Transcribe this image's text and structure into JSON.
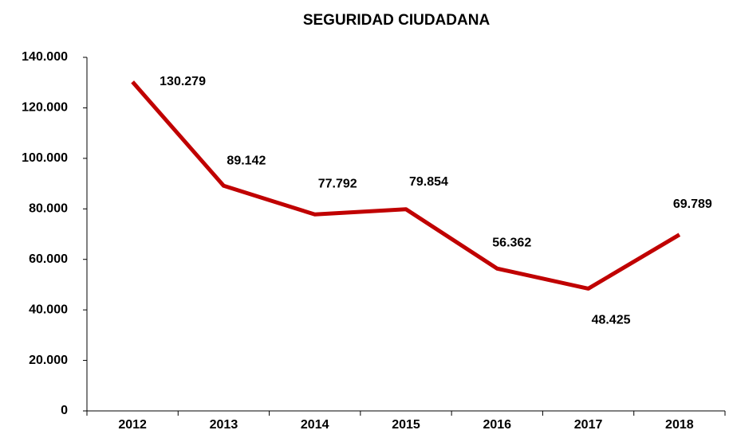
{
  "chart_data": {
    "type": "line",
    "title": "SEGURIDAD CIUDADANA",
    "categories": [
      "2012",
      "2013",
      "2014",
      "2015",
      "2016",
      "2017",
      "2018"
    ],
    "series": [
      {
        "name": "Seguridad ciudadana",
        "color": "#c00000",
        "values": [
          130279,
          89142,
          77792,
          79854,
          56362,
          48425,
          69789
        ],
        "value_labels": [
          "130.279",
          "89.142",
          "77.792",
          "79.854",
          "56.362",
          "48.425",
          "69.789"
        ]
      }
    ],
    "ylim": [
      0,
      140000
    ],
    "yticks": [
      0,
      {
        "value": 20000,
        "label": "20.000"
      },
      {
        "value": 40000,
        "label": "40.000"
      },
      {
        "value": 60000,
        "label": "60.000"
      },
      {
        "value": 80000,
        "label": "80.000"
      },
      {
        "value": 100000,
        "label": "100.000"
      },
      {
        "value": 120000,
        "label": "120.000"
      },
      {
        "value": 140000,
        "label": "140.000"
      }
    ],
    "grid": false
  }
}
